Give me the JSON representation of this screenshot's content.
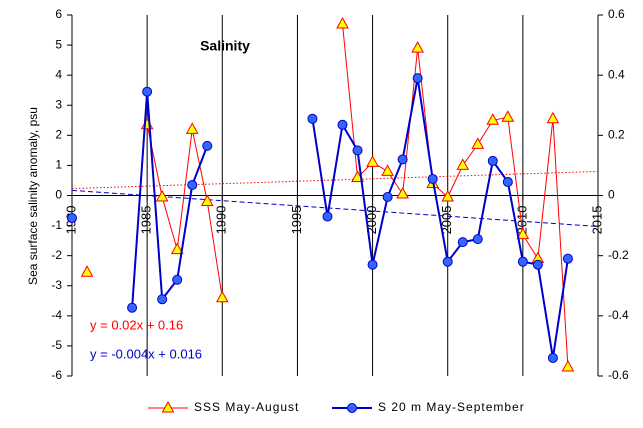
{
  "chart_data": {
    "type": "line",
    "annotation": "Salinity",
    "y_label": "Sea surface salinity anomaly, psu",
    "x": [
      1980,
      1981,
      1982,
      1983,
      1984,
      1985,
      1986,
      1987,
      1988,
      1989,
      1990,
      1991,
      1992,
      1993,
      1994,
      1995,
      1996,
      1997,
      1998,
      1999,
      2000,
      2001,
      2002,
      2003,
      2004,
      2005,
      2006,
      2007,
      2008,
      2009,
      2010,
      2011,
      2012,
      2013
    ],
    "xlim": [
      1980,
      2015
    ],
    "xticks": [
      1980,
      1985,
      1990,
      1995,
      2000,
      2005,
      2010,
      2015
    ],
    "ylim": [
      -6,
      6
    ],
    "yticks": [
      6,
      5,
      4,
      3,
      2,
      1,
      0,
      -1,
      -2,
      -3,
      -4,
      -5,
      -6
    ],
    "y2lim": [
      -0.6,
      0.6
    ],
    "y2ticks": [
      0.6,
      0.4,
      0.2,
      0,
      -0.2,
      -0.4,
      -0.6
    ],
    "series": [
      {
        "name": "SSS May-August",
        "color": "#ff0000",
        "marker": "triangle",
        "marker_color": "#ffff00",
        "values": [
          null,
          -2.55,
          null,
          null,
          null,
          2.35,
          -0.05,
          -1.8,
          2.2,
          -0.2,
          -3.4,
          null,
          null,
          null,
          null,
          null,
          null,
          null,
          5.7,
          0.6,
          1.1,
          0.8,
          0.05,
          4.9,
          0.4,
          -0.05,
          1.0,
          1.7,
          2.5,
          2.6,
          -1.3,
          -2.1,
          2.55,
          -5.7
        ]
      },
      {
        "name": "S 20 m May-September",
        "color": "#0000cc",
        "marker": "circle",
        "marker_color": "#3366ff",
        "axis": "y2",
        "values": [
          -0.075,
          null,
          null,
          null,
          -0.373,
          0.345,
          -0.345,
          -0.28,
          0.035,
          0.165,
          null,
          null,
          null,
          null,
          null,
          null,
          0.255,
          -0.07,
          0.235,
          0.15,
          -0.23,
          -0.005,
          0.12,
          0.39,
          0.055,
          -0.22,
          -0.155,
          -0.145,
          0.115,
          0.045,
          -0.22,
          -0.23,
          -0.54,
          -0.21
        ]
      }
    ],
    "trendlines": [
      {
        "label": "y = 0.02x + 0.16",
        "color": "#ff0000",
        "x": [
          1980,
          2015
        ],
        "values": [
          0.23,
          0.8
        ]
      },
      {
        "label": "y = -0.004x + 0.016",
        "color": "#0000cc",
        "axis": "y2",
        "x": [
          1980,
          2015
        ],
        "values": [
          0.017,
          -0.103
        ]
      }
    ]
  }
}
